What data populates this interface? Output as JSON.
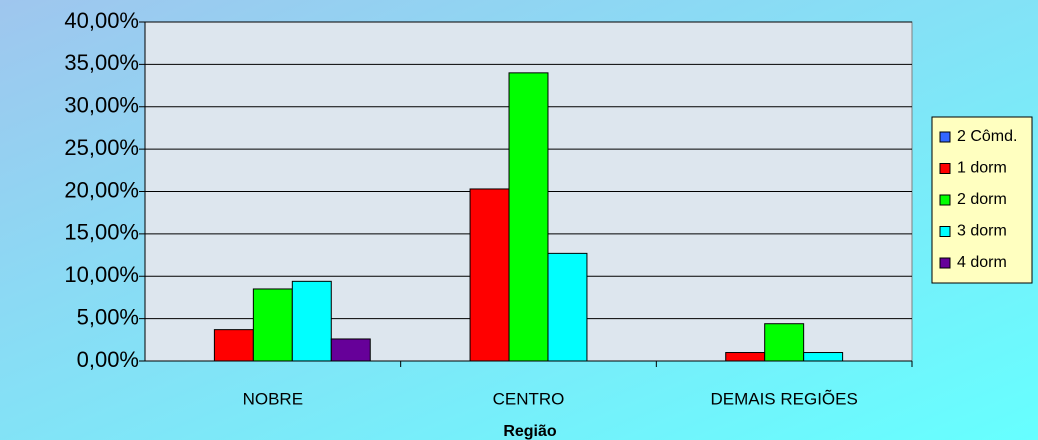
{
  "chart_data": {
    "type": "bar",
    "x_label": "Região",
    "categories": [
      "NOBRE",
      "CENTRO",
      "DEMAIS REGIÕES"
    ],
    "series": [
      {
        "name": "2 Cômd.",
        "color": "#3366ff",
        "values": [
          0,
          0,
          0
        ]
      },
      {
        "name": "1 dorm",
        "color": "#ff0000",
        "values": [
          3.7,
          20.3,
          1.0
        ]
      },
      {
        "name": "2 dorm",
        "color": "#00ff00",
        "values": [
          8.5,
          34.0,
          4.4
        ]
      },
      {
        "name": "3 dorm",
        "color": "#00ffff",
        "values": [
          9.4,
          12.7,
          1.0
        ]
      },
      {
        "name": "4 dorm",
        "color": "#660099",
        "values": [
          2.6,
          0,
          0
        ]
      }
    ],
    "ylim": [
      0,
      40
    ],
    "yticks": [
      {
        "value": 0,
        "label": "0,00%"
      },
      {
        "value": 5,
        "label": "5,00%"
      },
      {
        "value": 10,
        "label": "10,00%"
      },
      {
        "value": 15,
        "label": "15,00%"
      },
      {
        "value": 20,
        "label": "20,00%"
      },
      {
        "value": 25,
        "label": "25,00%"
      },
      {
        "value": 30,
        "label": "30,00%"
      },
      {
        "value": 35,
        "label": "35,00%"
      },
      {
        "value": 40,
        "label": "40,00%"
      }
    ],
    "grid": true,
    "legend": "right"
  }
}
